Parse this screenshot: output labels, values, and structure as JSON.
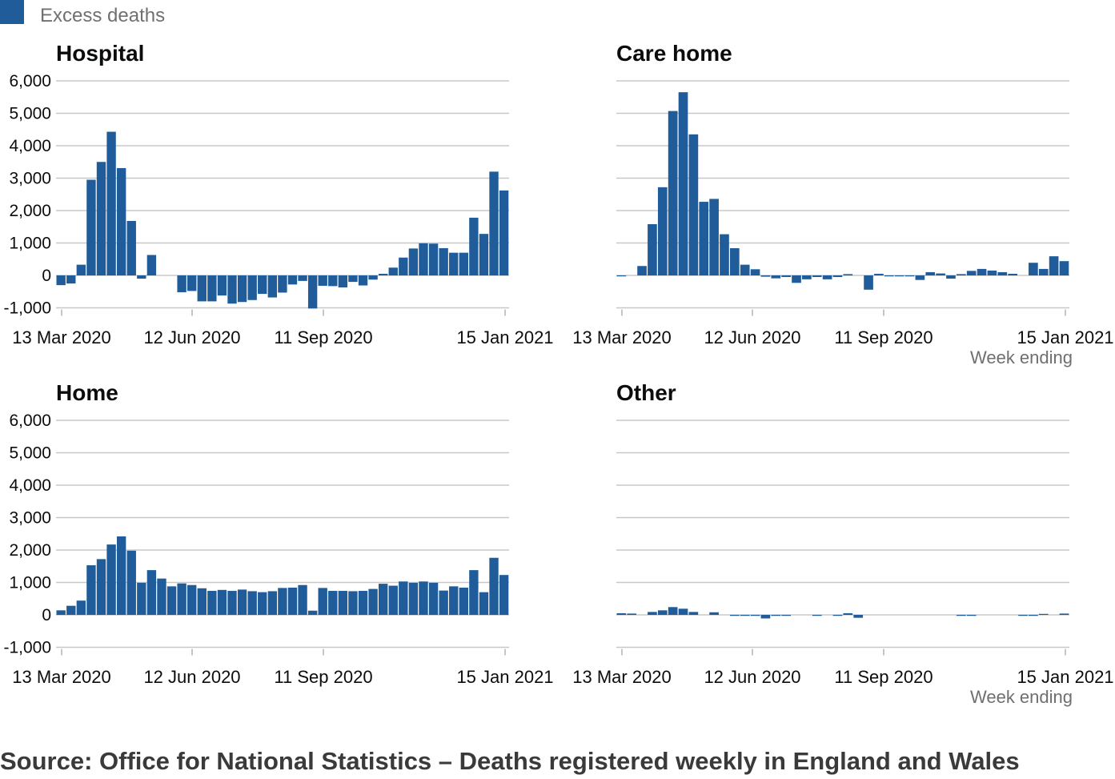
{
  "legend": {
    "label": "Excess deaths",
    "color": "#1f5c99"
  },
  "source": "Source: Office for National Statistics – Deaths registered weekly in England and Wales",
  "chart_data": [
    {
      "type": "bar",
      "title": "Hospital",
      "xlabel": "",
      "ylabel": "",
      "ylim": [
        -1000,
        6000
      ],
      "yticks": [
        "6,000",
        "5,000",
        "4,000",
        "3,000",
        "2,000",
        "1,000",
        "0",
        "-1,000"
      ],
      "xticks": [
        "13 Mar 2020",
        "12 Jun 2020",
        "11 Sep 2020",
        "15 Jan 2021"
      ],
      "grid": true,
      "series": [
        {
          "name": "Excess deaths",
          "values": [
            -300,
            -250,
            330,
            2950,
            3500,
            4430,
            3310,
            1680,
            -100,
            630,
            0,
            0,
            -520,
            -480,
            -800,
            -800,
            -620,
            -870,
            -820,
            -760,
            -570,
            -680,
            -530,
            -280,
            -170,
            -1020,
            -320,
            -330,
            -370,
            -200,
            -310,
            -130,
            50,
            240,
            550,
            830,
            990,
            980,
            840,
            700,
            700,
            1780,
            1280,
            3200,
            2620
          ]
        }
      ]
    },
    {
      "type": "bar",
      "title": "Care home",
      "xlabel": "Week ending",
      "ylabel": "",
      "ylim": [
        -1000,
        6000
      ],
      "xticks": [
        "13 Mar 2020",
        "12 Jun 2020",
        "11 Sep 2020",
        "15 Jan 2021"
      ],
      "grid": true,
      "series": [
        {
          "name": "Excess deaths",
          "values": [
            -20,
            0,
            290,
            1580,
            2720,
            5070,
            5650,
            4350,
            2270,
            2360,
            1270,
            840,
            330,
            190,
            -40,
            -90,
            -50,
            -230,
            -120,
            -50,
            -120,
            -50,
            40,
            0,
            -440,
            50,
            -30,
            -30,
            -30,
            -140,
            100,
            60,
            -100,
            40,
            140,
            200,
            150,
            100,
            50,
            0,
            390,
            200,
            590,
            440
          ]
        }
      ]
    },
    {
      "type": "bar",
      "title": "Home",
      "xlabel": "",
      "ylabel": "",
      "ylim": [
        -1000,
        6000
      ],
      "yticks": [
        "6,000",
        "5,000",
        "4,000",
        "3,000",
        "2,000",
        "1,000",
        "0",
        "-1,000"
      ],
      "xticks": [
        "13 Mar 2020",
        "12 Jun 2020",
        "11 Sep 2020",
        "15 Jan 2021"
      ],
      "grid": true,
      "series": [
        {
          "name": "Excess deaths",
          "values": [
            140,
            280,
            440,
            1530,
            1720,
            2170,
            2420,
            1980,
            990,
            1380,
            1120,
            880,
            970,
            920,
            820,
            740,
            770,
            740,
            780,
            730,
            700,
            730,
            830,
            840,
            920,
            130,
            830,
            740,
            740,
            730,
            740,
            800,
            960,
            900,
            1030,
            990,
            1030,
            990,
            750,
            880,
            840,
            1380,
            700,
            1760,
            1230
          ]
        }
      ]
    },
    {
      "type": "bar",
      "title": "Other",
      "xlabel": "Week ending",
      "ylabel": "",
      "ylim": [
        -1000,
        6000
      ],
      "xticks": [
        "13 Mar 2020",
        "12 Jun 2020",
        "11 Sep 2020",
        "15 Jan 2021"
      ],
      "grid": true,
      "series": [
        {
          "name": "Excess deaths",
          "values": [
            50,
            40,
            0,
            90,
            140,
            240,
            190,
            90,
            0,
            80,
            0,
            -30,
            -30,
            -30,
            -110,
            -30,
            -20,
            0,
            0,
            -20,
            0,
            -20,
            50,
            -90,
            0,
            0,
            0,
            0,
            0,
            0,
            0,
            0,
            0,
            -30,
            -30,
            0,
            0,
            0,
            0,
            -30,
            -30,
            30,
            0,
            40
          ]
        }
      ]
    }
  ]
}
